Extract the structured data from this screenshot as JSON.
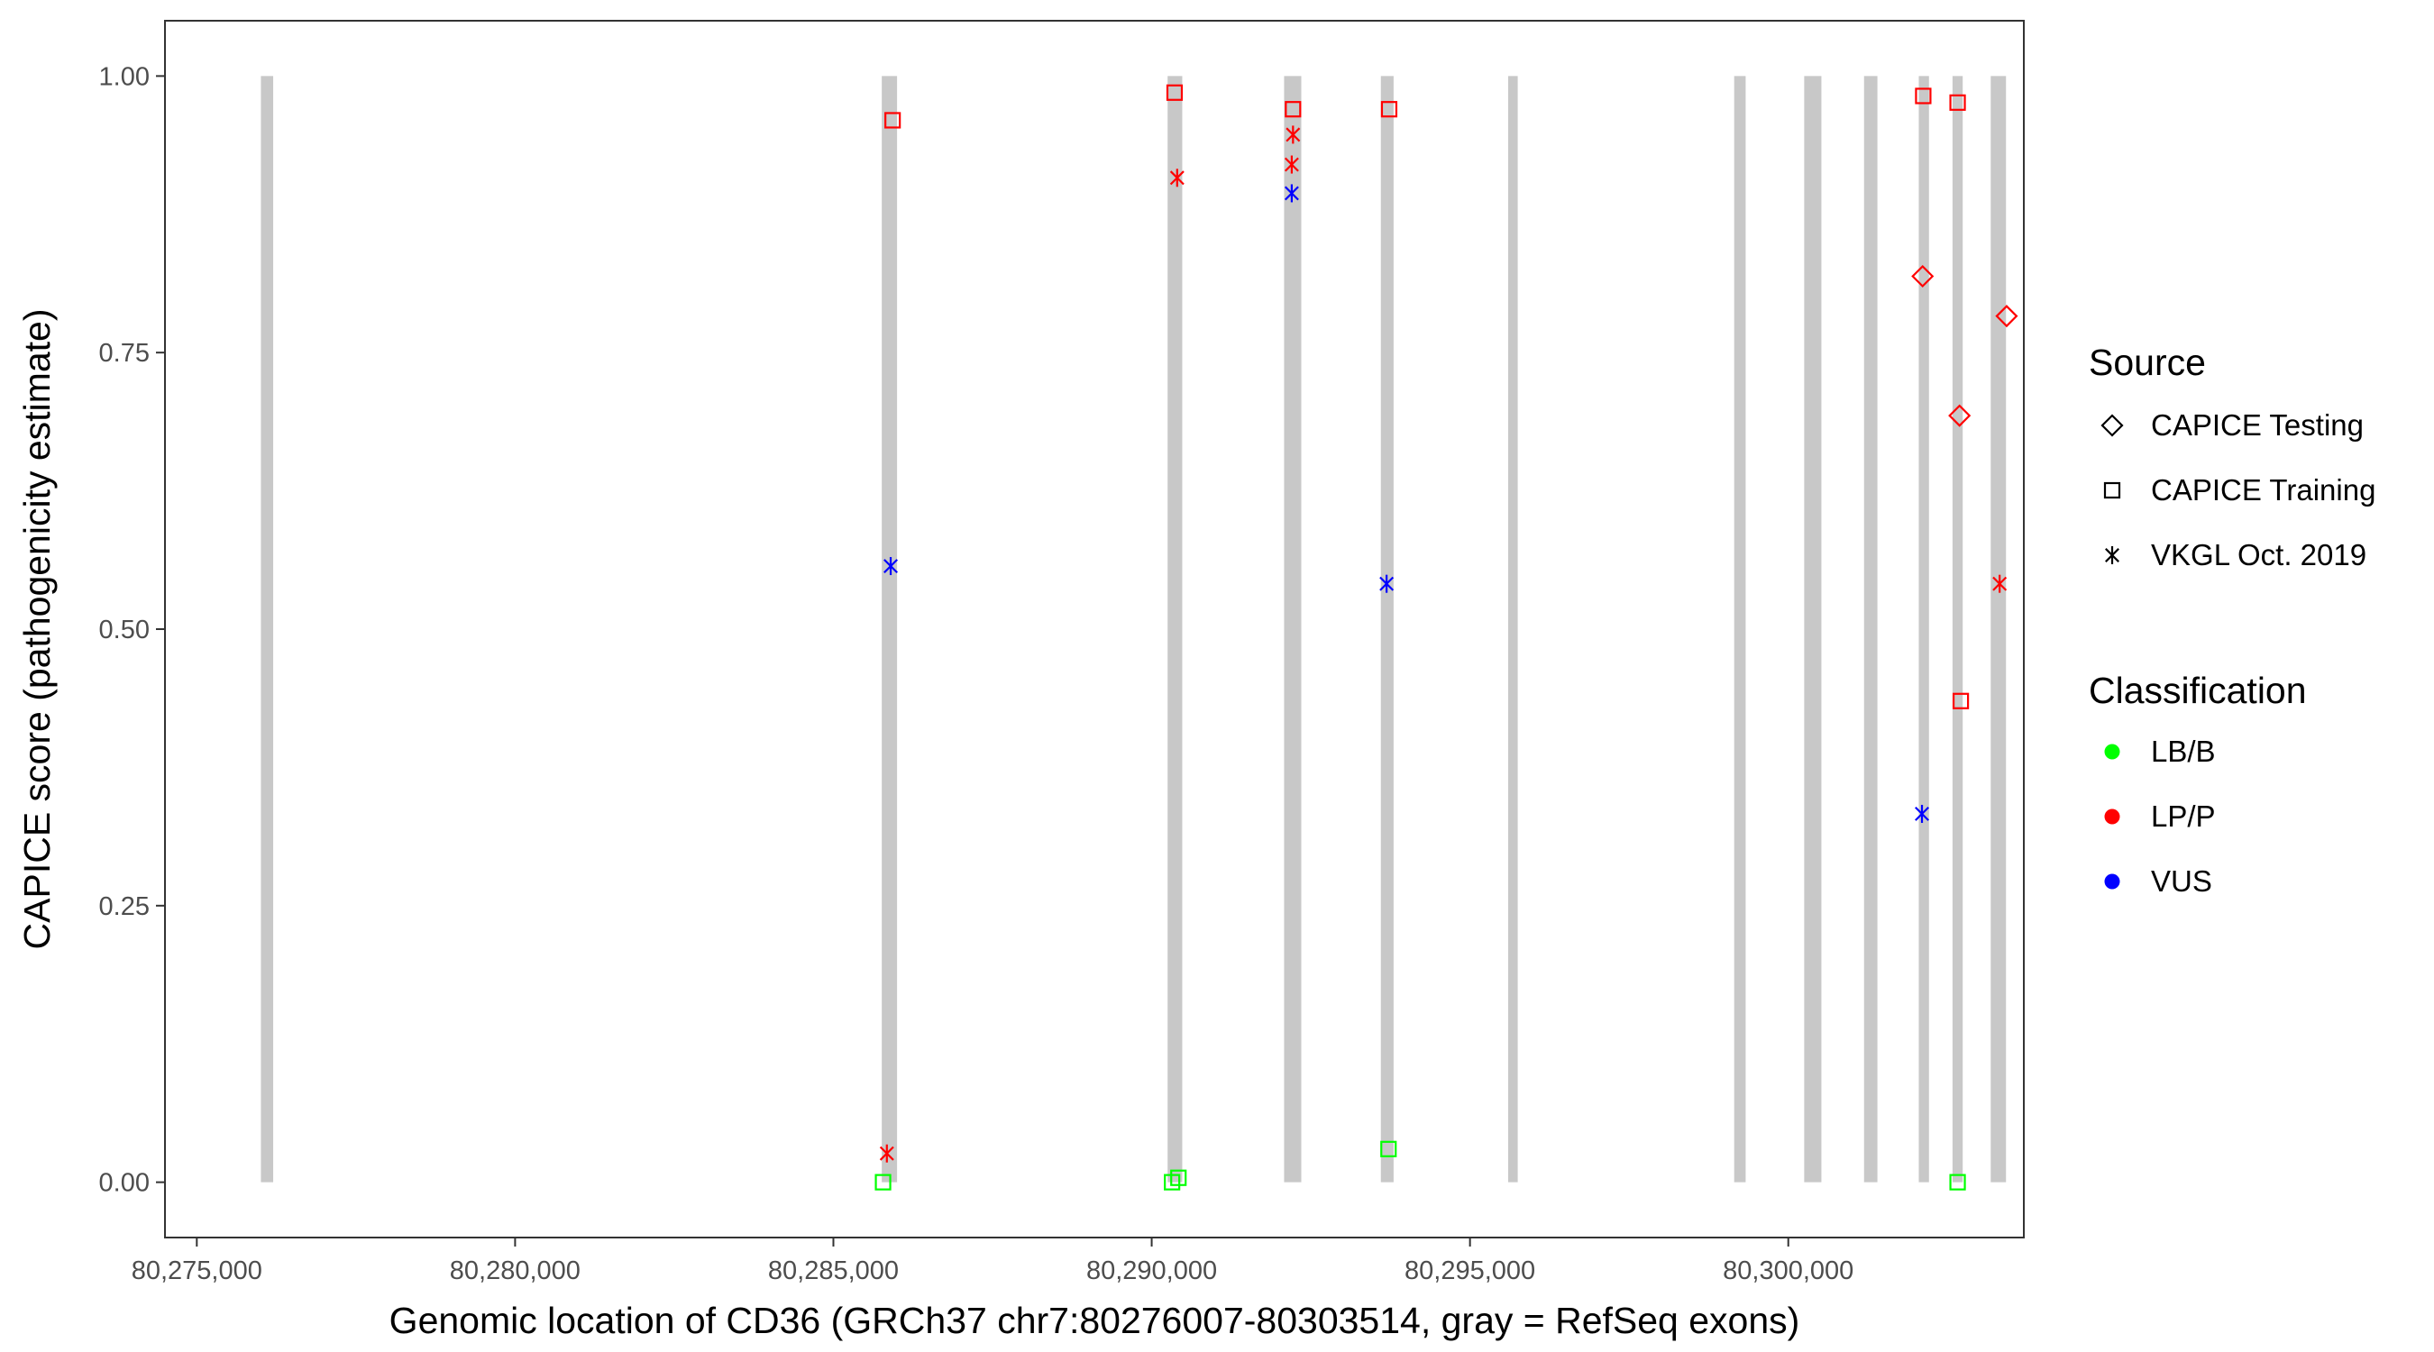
{
  "chart_data": {
    "type": "scatter",
    "title": "",
    "xlabel": "Genomic location of CD36 (GRCh37 chr7:80276007-80303514, gray = RefSeq exons)",
    "ylabel": "CAPICE score (pathogenicity estimate)",
    "xlim": [
      80274500,
      80303700
    ],
    "ylim": [
      -0.05,
      1.05
    ],
    "x_ticks": [
      80275000,
      80280000,
      80285000,
      80290000,
      80295000,
      80300000
    ],
    "x_tick_labels": [
      "80,275,000",
      "80,280,000",
      "80,285,000",
      "80,290,000",
      "80,295,000",
      "80,300,000"
    ],
    "y_ticks": [
      0.0,
      0.25,
      0.5,
      0.75,
      1.0
    ],
    "y_tick_labels": [
      "0.00",
      "0.25",
      "0.50",
      "0.75",
      "1.00"
    ],
    "grid": false,
    "legend_position": "right",
    "exons": [
      {
        "start": 80276007,
        "end": 80276200
      },
      {
        "start": 80285760,
        "end": 80286000
      },
      {
        "start": 80290250,
        "end": 80290480
      },
      {
        "start": 80292080,
        "end": 80292350
      },
      {
        "start": 80293600,
        "end": 80293800
      },
      {
        "start": 80295600,
        "end": 80295750
      },
      {
        "start": 80299150,
        "end": 80299330
      },
      {
        "start": 80300250,
        "end": 80300520
      },
      {
        "start": 80301190,
        "end": 80301400
      },
      {
        "start": 80302050,
        "end": 80302210
      },
      {
        "start": 80302580,
        "end": 80302740
      },
      {
        "start": 80303180,
        "end": 80303420
      }
    ],
    "source_legend": {
      "title": "Source",
      "entries": [
        {
          "label": "CAPICE Testing",
          "shape": "diamond"
        },
        {
          "label": "CAPICE Training",
          "shape": "square"
        },
        {
          "label": "VKGL Oct. 2019",
          "shape": "asterisk"
        }
      ]
    },
    "classification_legend": {
      "title": "Classification",
      "entries": [
        {
          "label": "LB/B",
          "color": "#00ff00"
        },
        {
          "label": "LP/P",
          "color": "#ff0000"
        },
        {
          "label": "VUS",
          "color": "#0000ff"
        }
      ]
    },
    "points": [
      {
        "x": 80285930,
        "y": 0.96,
        "shape": "square",
        "class": "LP/P"
      },
      {
        "x": 80285900,
        "y": 0.557,
        "shape": "asterisk",
        "class": "VUS"
      },
      {
        "x": 80285840,
        "y": 0.026,
        "shape": "asterisk",
        "class": "LP/P"
      },
      {
        "x": 80285780,
        "y": 0.0,
        "shape": "square",
        "class": "LB/B"
      },
      {
        "x": 80290360,
        "y": 0.985,
        "shape": "square",
        "class": "LP/P"
      },
      {
        "x": 80290400,
        "y": 0.908,
        "shape": "asterisk",
        "class": "LP/P"
      },
      {
        "x": 80290320,
        "y": 0.0,
        "shape": "square",
        "class": "LB/B"
      },
      {
        "x": 80290420,
        "y": 0.004,
        "shape": "square",
        "class": "LB/B"
      },
      {
        "x": 80292220,
        "y": 0.97,
        "shape": "square",
        "class": "LP/P"
      },
      {
        "x": 80292220,
        "y": 0.947,
        "shape": "asterisk",
        "class": "LP/P"
      },
      {
        "x": 80292200,
        "y": 0.92,
        "shape": "asterisk",
        "class": "LP/P"
      },
      {
        "x": 80292200,
        "y": 0.894,
        "shape": "asterisk",
        "class": "VUS"
      },
      {
        "x": 80293730,
        "y": 0.97,
        "shape": "square",
        "class": "LP/P"
      },
      {
        "x": 80293690,
        "y": 0.541,
        "shape": "asterisk",
        "class": "VUS"
      },
      {
        "x": 80293720,
        "y": 0.03,
        "shape": "square",
        "class": "LB/B"
      },
      {
        "x": 80302120,
        "y": 0.982,
        "shape": "square",
        "class": "LP/P"
      },
      {
        "x": 80302110,
        "y": 0.819,
        "shape": "diamond",
        "class": "LP/P"
      },
      {
        "x": 80302100,
        "y": 0.333,
        "shape": "asterisk",
        "class": "VUS"
      },
      {
        "x": 80302660,
        "y": 0.976,
        "shape": "square",
        "class": "LP/P"
      },
      {
        "x": 80302690,
        "y": 0.693,
        "shape": "diamond",
        "class": "LP/P"
      },
      {
        "x": 80302710,
        "y": 0.435,
        "shape": "square",
        "class": "LP/P"
      },
      {
        "x": 80302660,
        "y": 0.0,
        "shape": "square",
        "class": "LB/B"
      },
      {
        "x": 80303430,
        "y": 0.783,
        "shape": "diamond",
        "class": "LP/P"
      },
      {
        "x": 80303320,
        "y": 0.541,
        "shape": "asterisk",
        "class": "LP/P"
      }
    ]
  }
}
